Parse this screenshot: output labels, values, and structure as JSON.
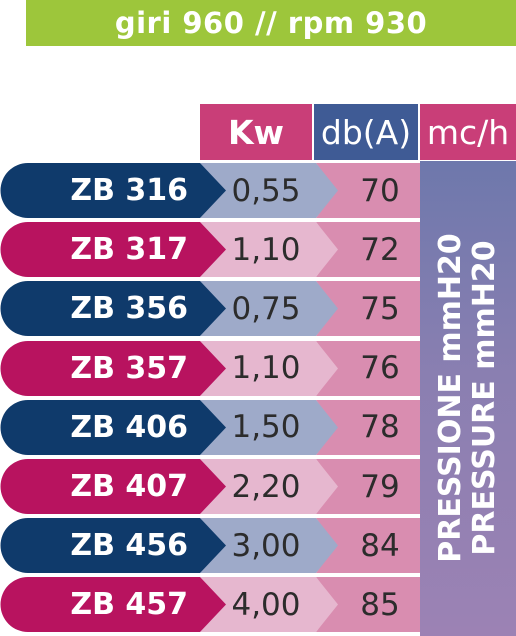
{
  "banner": "giri 960 // rpm 930",
  "headers": {
    "kw": "Kw",
    "db": "db(A)",
    "mc": "mc/h"
  },
  "pressure": {
    "line1": "PRESSIONE mmH20",
    "line2": "PRESSURE mmH20"
  },
  "colors": {
    "green": "#9dc63b",
    "navy": "#0f3a6b",
    "magenta": "#b8135f",
    "light_blue": "#9eaac9",
    "light_pink": "#e6b7cf",
    "pink": "#d98db0",
    "mc_column": "#7b7cb0"
  },
  "rows": [
    {
      "model": "ZB 316",
      "kw": "0,55",
      "db": "70",
      "style": "navy"
    },
    {
      "model": "ZB 317",
      "kw": "1,10",
      "db": "72",
      "style": "magenta"
    },
    {
      "model": "ZB 356",
      "kw": "0,75",
      "db": "75",
      "style": "navy"
    },
    {
      "model": "ZB 357",
      "kw": "1,10",
      "db": "76",
      "style": "magenta"
    },
    {
      "model": "ZB 406",
      "kw": "1,50",
      "db": "78",
      "style": "navy"
    },
    {
      "model": "ZB 407",
      "kw": "2,20",
      "db": "79",
      "style": "magenta"
    },
    {
      "model": "ZB 456",
      "kw": "3,00",
      "db": "84",
      "style": "navy"
    },
    {
      "model": "ZB 457",
      "kw": "4,00",
      "db": "85",
      "style": "magenta"
    }
  ]
}
